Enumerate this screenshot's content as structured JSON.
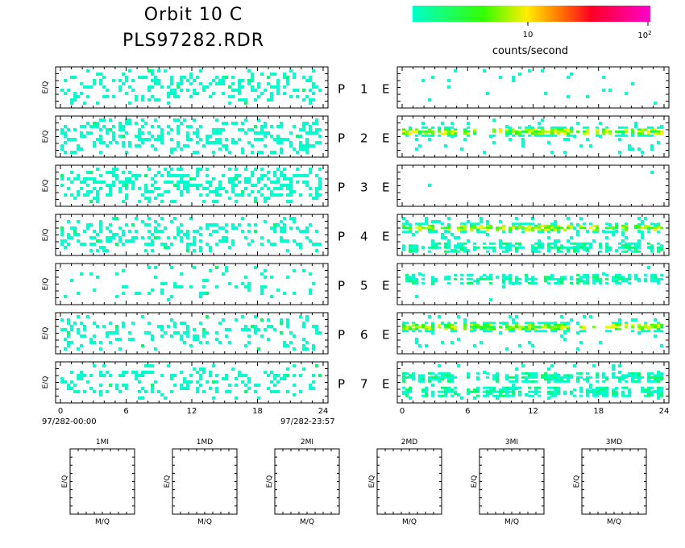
{
  "header": {
    "title": "Orbit 10 C",
    "subtitle": "PLS97282.RDR"
  },
  "colorbar": {
    "label": "counts/second",
    "tick_10": "10",
    "tick_100_base": "10",
    "tick_100_exp": "2",
    "colors": [
      "#00ffcc",
      "#00ff66",
      "#33ff00",
      "#aaff00",
      "#ffee00",
      "#ffaa00",
      "#ff5500",
      "#ff0022",
      "#ff0077",
      "#ff00cc"
    ]
  },
  "chart_data": {
    "type": "heatmap",
    "title": "Orbit 10 C",
    "ylabel": "E/Q",
    "x_ticks": [
      "0",
      "6",
      "12",
      "18",
      "24"
    ],
    "xlim": [
      0,
      24
    ],
    "time_start": "97/282-00:00",
    "time_end": "97/282-23:57",
    "panel_labels": [
      {
        "p": "P",
        "n": "1",
        "e": "E"
      },
      {
        "p": "P",
        "n": "2",
        "e": "E"
      },
      {
        "p": "P",
        "n": "3",
        "e": "E"
      },
      {
        "p": "P",
        "n": "4",
        "e": "E"
      },
      {
        "p": "P",
        "n": "5",
        "e": "E"
      },
      {
        "p": "P",
        "n": "6",
        "e": "E"
      },
      {
        "p": "P",
        "n": "7",
        "e": "E"
      }
    ],
    "left_density": [
      0.3,
      0.35,
      0.38,
      0.28,
      0.12,
      0.2,
      0.25
    ],
    "right_panels": [
      {
        "bands": [],
        "sparse": 0.02
      },
      {
        "bands": [
          {
            "yfrac": 0.35,
            "hot": true
          }
        ],
        "sparse": 0.06
      },
      {
        "bands": [],
        "sparse": 0.006
      },
      {
        "bands": [
          {
            "yfrac": 0.3,
            "hot": true
          },
          {
            "yfrac": 0.78,
            "hot": false
          }
        ],
        "sparse": 0.1
      },
      {
        "bands": [
          {
            "yfrac": 0.35,
            "hot": false
          }
        ],
        "sparse": 0.01
      },
      {
        "bands": [
          {
            "yfrac": 0.32,
            "hot": true
          }
        ],
        "sparse": 0.05
      },
      {
        "bands": [
          {
            "yfrac": 0.35,
            "hot": false
          },
          {
            "yfrac": 0.7,
            "hot": false
          }
        ],
        "sparse": 0.05
      }
    ],
    "mass_plots": [
      {
        "title": "1MI",
        "xlabel": "M/Q",
        "ylabel": "E/Q"
      },
      {
        "title": "1MD",
        "xlabel": "M/Q",
        "ylabel": "E/Q"
      },
      {
        "title": "2MI",
        "xlabel": "M/Q",
        "ylabel": "E/Q"
      },
      {
        "title": "2MD",
        "xlabel": "M/Q",
        "ylabel": "E/Q"
      },
      {
        "title": "3MI",
        "xlabel": "M/Q",
        "ylabel": "E/Q"
      },
      {
        "title": "3MD",
        "xlabel": "M/Q",
        "ylabel": "E/Q"
      }
    ]
  }
}
